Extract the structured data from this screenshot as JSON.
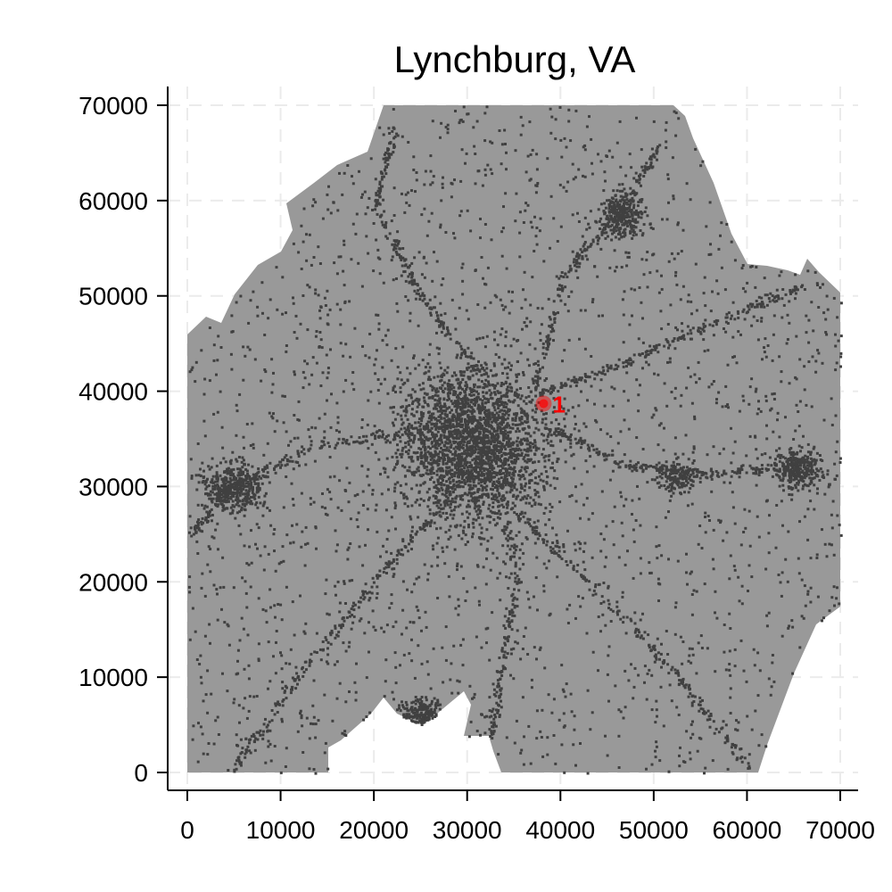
{
  "chart_data": {
    "type": "scatter",
    "title": "Lynchburg, VA",
    "xlabel": "",
    "ylabel": "",
    "xlim": [
      0,
      70000
    ],
    "ylim": [
      0,
      70000
    ],
    "x_ticks": [
      "0",
      "10000",
      "20000",
      "30000",
      "40000",
      "50000",
      "60000",
      "70000"
    ],
    "y_ticks": [
      "0",
      "10000",
      "20000",
      "30000",
      "40000",
      "50000",
      "60000",
      "70000"
    ],
    "grid": true,
    "region_color": "#999999",
    "point_color": "#404040",
    "dense_clusters": [
      {
        "x": 30500,
        "y": 34500
      },
      {
        "x": 4800,
        "y": 30000
      },
      {
        "x": 46500,
        "y": 58500
      },
      {
        "x": 65500,
        "y": 32000
      },
      {
        "x": 25000,
        "y": 6000
      },
      {
        "x": 52500,
        "y": 31000
      }
    ],
    "highlight": {
      "label": "1",
      "x": 38200,
      "y": 38700,
      "color": "#ff0000"
    }
  }
}
